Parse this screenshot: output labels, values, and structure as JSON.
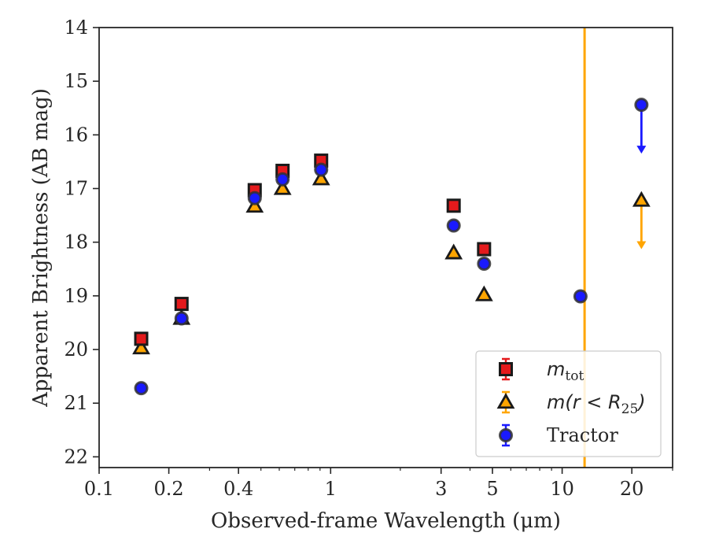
{
  "chart_data": {
    "type": "scatter",
    "xlabel": "Observed-frame Wavelength (μm)",
    "ylabel": "Apparent Brightness (AB mag)",
    "x_scale": "log",
    "xlim": [
      0.1,
      30
    ],
    "ylim": [
      22.2,
      14
    ],
    "y_inverted": true,
    "x_ticks": [
      {
        "value": 0.1,
        "label": "0.1"
      },
      {
        "value": 0.2,
        "label": "0.2"
      },
      {
        "value": 0.4,
        "label": "0.4"
      },
      {
        "value": 1,
        "label": "1"
      },
      {
        "value": 3,
        "label": "3"
      },
      {
        "value": 5,
        "label": "5"
      },
      {
        "value": 10,
        "label": "10"
      },
      {
        "value": 20,
        "label": "20"
      }
    ],
    "y_ticks": [
      14,
      15,
      16,
      17,
      18,
      19,
      20,
      21,
      22
    ],
    "grid": false,
    "vertical_line": {
      "x": 12.5,
      "color": "#ffa500"
    },
    "legend": {
      "placement": "lower-right",
      "entries": [
        {
          "series": "mtot",
          "label_main": "m",
          "label_sub": "tot"
        },
        {
          "series": "mr25",
          "label_main": "m(r < R",
          "label_sub": "25",
          "label_tail": ")"
        },
        {
          "series": "tractor",
          "label_main": "Tractor"
        }
      ]
    },
    "series": [
      {
        "key": "mtot",
        "marker": "square",
        "color": "#e41a1c",
        "errcolor": "#e41a1c",
        "points": [
          {
            "x": 0.152,
            "y": 19.8
          },
          {
            "x": 0.227,
            "y": 19.15
          },
          {
            "x": 0.47,
            "y": 17.03
          },
          {
            "x": 0.62,
            "y": 16.67
          },
          {
            "x": 0.91,
            "y": 16.48
          },
          {
            "x": 3.4,
            "y": 17.32
          },
          {
            "x": 4.6,
            "y": 18.13
          }
        ]
      },
      {
        "key": "mr25",
        "marker": "triangle",
        "color": "#ffa500",
        "errcolor": "#ffa500",
        "points": [
          {
            "x": 0.152,
            "y": 19.97
          },
          {
            "x": 0.227,
            "y": 19.42
          },
          {
            "x": 0.47,
            "y": 17.33
          },
          {
            "x": 0.62,
            "y": 17.0
          },
          {
            "x": 0.91,
            "y": 16.82
          },
          {
            "x": 3.4,
            "y": 18.2
          },
          {
            "x": 4.6,
            "y": 18.98
          },
          {
            "x": 22.0,
            "y": 17.22,
            "upper_limit": true
          }
        ]
      },
      {
        "key": "tractor",
        "marker": "circle",
        "color": "#1a1aff",
        "errcolor": "#1a1aff",
        "points": [
          {
            "x": 0.152,
            "y": 20.72
          },
          {
            "x": 0.227,
            "y": 19.42
          },
          {
            "x": 0.47,
            "y": 17.18
          },
          {
            "x": 0.62,
            "y": 16.83
          },
          {
            "x": 0.91,
            "y": 16.65
          },
          {
            "x": 3.4,
            "y": 17.69
          },
          {
            "x": 4.6,
            "y": 18.4
          },
          {
            "x": 12.0,
            "y": 19.01
          },
          {
            "x": 22.0,
            "y": 15.44,
            "upper_limit": true
          }
        ]
      }
    ]
  }
}
